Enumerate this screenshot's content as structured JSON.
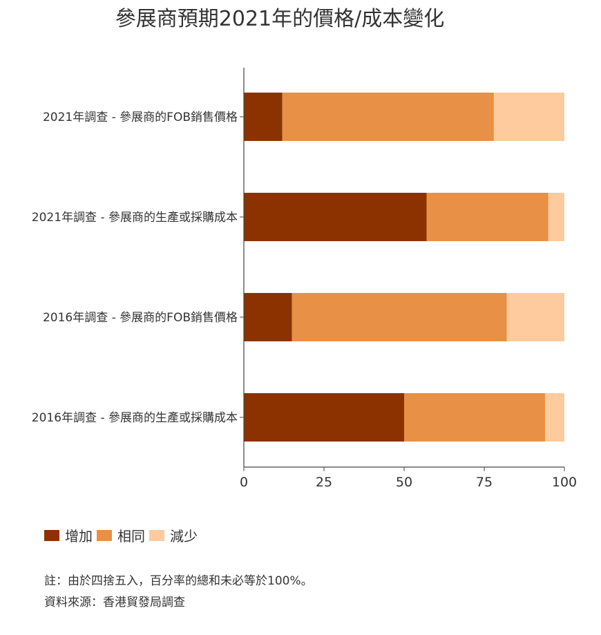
{
  "title": "參展商預期2021年的價格/成本變化",
  "chart_data": {
    "type": "bar",
    "orientation": "horizontal",
    "stacked": true,
    "title": "參展商預期2021年的價格/成本變化",
    "categories": [
      "2021年調查 - 參展商的FOB銷售價格",
      "2021年調查 - 參展商的生產或採購成本",
      "2016年調查 - 參展商的FOB銷售價格",
      "2016年調查 - 參展商的生產或採購成本"
    ],
    "series": [
      {
        "name": "增加",
        "color": "#8B3200",
        "values": [
          12,
          57,
          15,
          50
        ]
      },
      {
        "name": "相同",
        "color": "#E89046",
        "values": [
          66,
          38,
          67,
          44
        ]
      },
      {
        "name": "減少",
        "color": "#FDCB9E",
        "values": [
          22,
          5,
          18,
          6
        ]
      }
    ],
    "xlim": [
      0,
      100
    ],
    "xticks": [
      "0",
      "25",
      "50",
      "75",
      "100"
    ],
    "xlabel": "",
    "ylabel": "",
    "grid": false,
    "legend_position": "bottom-left"
  },
  "notes": [
    "註：由於四捨五入，百分率的總和未必等於100%。",
    "資料來源：香港貿發局調查"
  ]
}
